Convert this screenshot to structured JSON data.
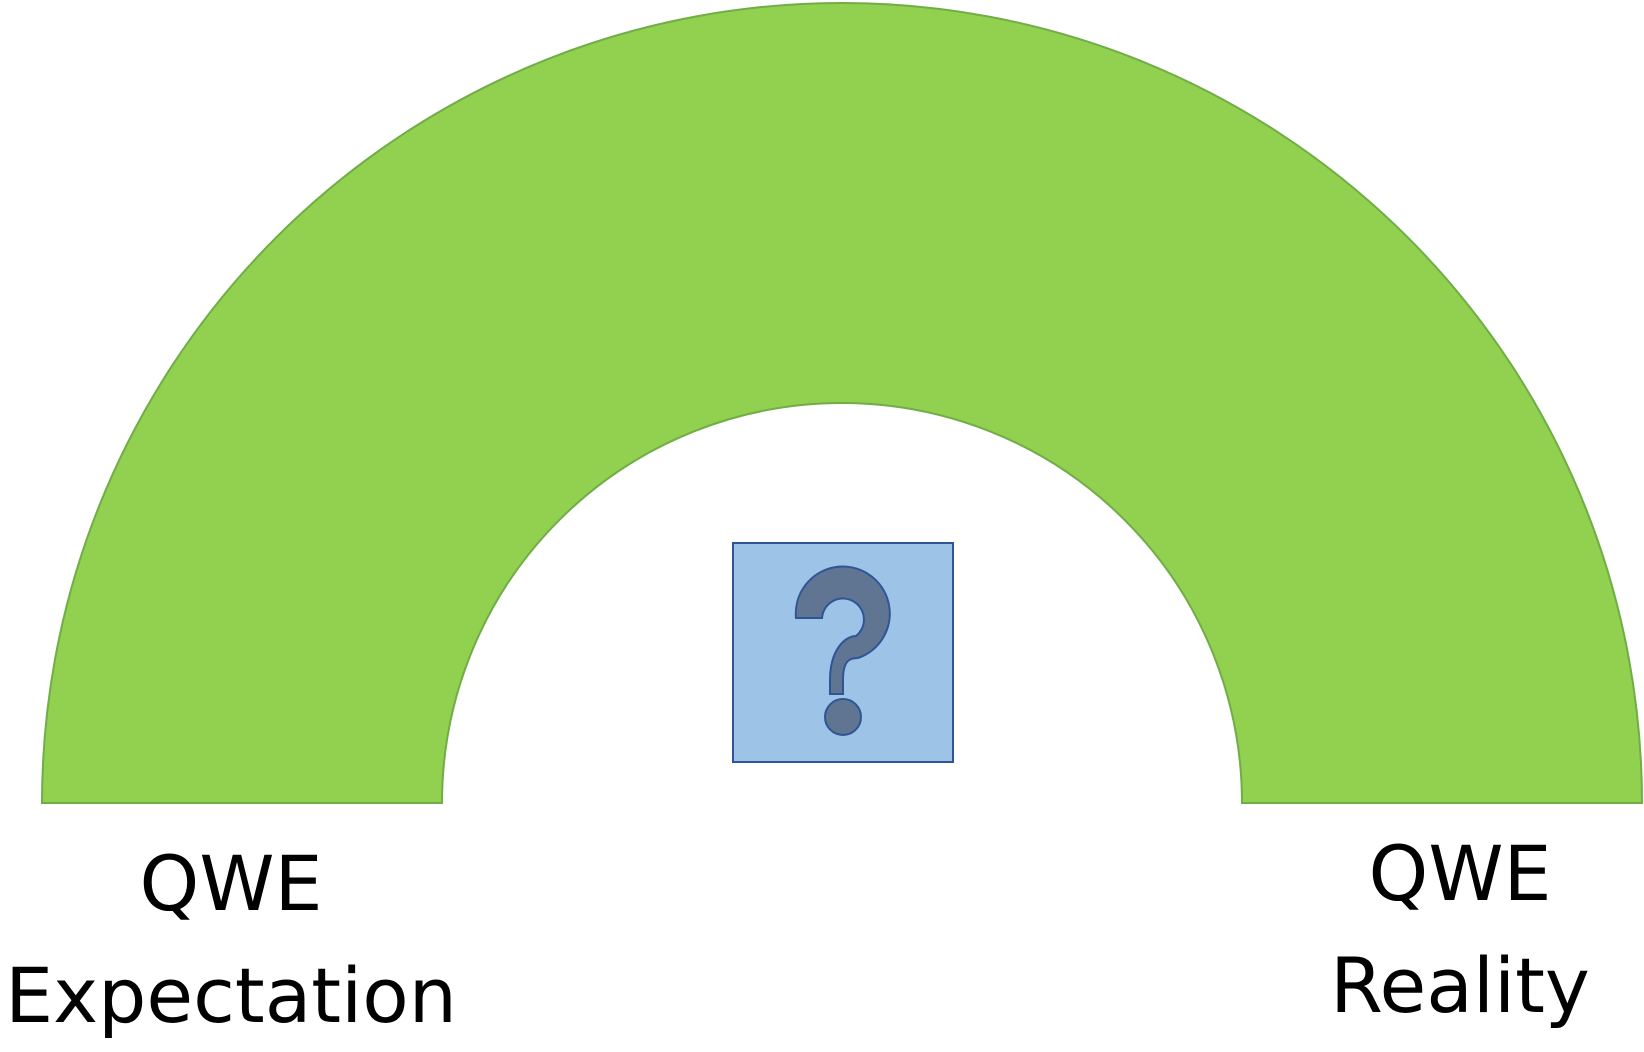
{
  "labels": {
    "left": {
      "line1": "QWE",
      "line2": "Expectation"
    },
    "right": {
      "line1": "QWE",
      "line2": "Reality"
    }
  },
  "center_icon": "question-mark-icon",
  "colors": {
    "arch_fill": "#92d050",
    "arch_stroke": "#70ad47",
    "box_fill": "#9dc3e6",
    "box_stroke": "#2f5597",
    "question_mark_fill": "#5f7591"
  }
}
